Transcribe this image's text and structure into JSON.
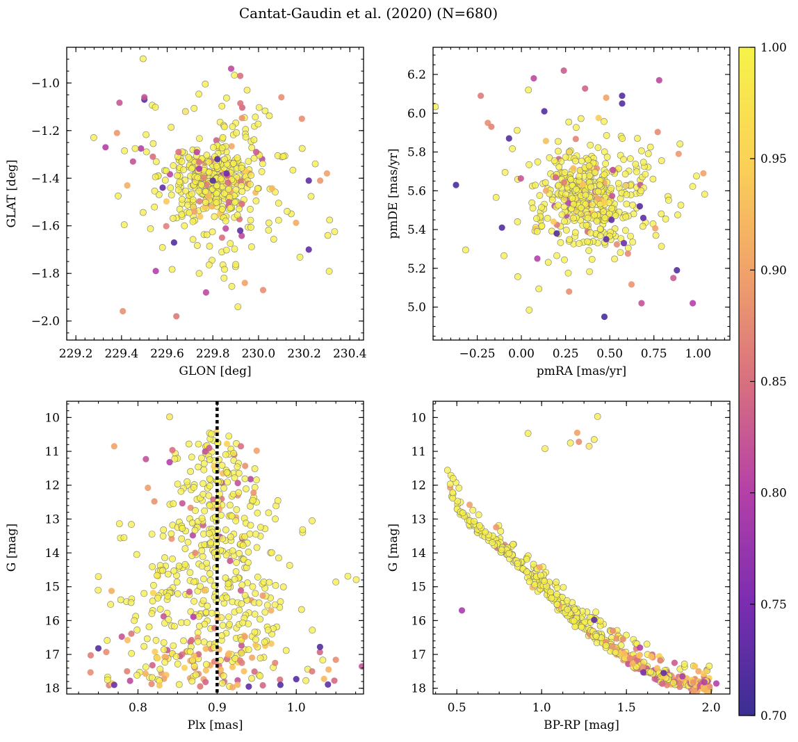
{
  "chart_data": {
    "title": "Cantat-Gaudin et al. (2020) (N=680)",
    "n_members": 680,
    "colorbar": {
      "label": "",
      "range": [
        0.7,
        1.0
      ],
      "ticks": [
        "0.70",
        "0.75",
        "0.80",
        "0.85",
        "0.90",
        "0.95",
        "1.00"
      ],
      "colormap": "plasma",
      "stops": [
        "#3b2f93",
        "#7a2db0",
        "#b440a8",
        "#d8707f",
        "#f1a36a",
        "#fbd356",
        "#f6f34a"
      ]
    },
    "panels": [
      {
        "id": "sky",
        "type": "scatter",
        "xlabel": "GLON [deg]",
        "ylabel": "GLAT [deg]",
        "xlim": [
          229.16,
          230.46
        ],
        "ylim": [
          -2.08,
          -0.85
        ],
        "y_inverted": false,
        "xticks": [
          "229.2",
          "229.4",
          "229.6",
          "229.8",
          "230.0",
          "230.2",
          "230.4"
        ],
        "yticks": [
          "−1.0",
          "−1.2",
          "−1.4",
          "−1.6",
          "−1.8",
          "−2.0"
        ],
        "points": [
          [
            229.88,
            -0.94,
            0.81
          ],
          [
            229.92,
            -0.97,
            0.85
          ],
          [
            229.68,
            -1.12,
            0.97
          ],
          [
            229.8,
            -1.41,
            0.72
          ],
          [
            229.74,
            -1.36,
            0.79
          ],
          [
            229.86,
            -1.38,
            0.74
          ],
          [
            229.92,
            -1.62,
            0.73
          ],
          [
            229.63,
            -1.67,
            0.72
          ],
          [
            230.22,
            -1.41,
            0.73
          ],
          [
            230.22,
            -1.7,
            0.73
          ],
          [
            229.5,
            -1.07,
            0.72
          ],
          [
            229.64,
            -1.98,
            0.86
          ],
          [
            229.77,
            -1.88,
            0.81
          ],
          [
            230.02,
            -1.87,
            0.88
          ],
          [
            230.1,
            -1.06,
            0.88
          ],
          [
            229.38,
            -1.21,
            0.89
          ],
          [
            230.27,
            -1.41,
            0.89
          ],
          [
            229.94,
            -1.84,
            0.9
          ],
          [
            229.5,
            -1.06,
            0.82
          ],
          [
            229.33,
            -1.27,
            0.8
          ],
          [
            230.19,
            -1.15,
            0.88
          ],
          [
            229.55,
            -1.79,
            0.8
          ],
          [
            229.95,
            -1.03,
            0.99
          ],
          [
            229.74,
            -1.8,
            0.99
          ],
          [
            229.91,
            -1.94,
            0.99
          ],
          [
            229.65,
            -1.29,
            0.85
          ],
          [
            229.99,
            -1.29,
            0.83
          ],
          [
            229.72,
            -1.54,
            0.9
          ],
          [
            229.87,
            -1.5,
            0.84
          ],
          [
            229.58,
            -1.44,
            0.73
          ],
          [
            229.82,
            -1.32,
            0.72
          ],
          [
            229.45,
            -1.33,
            0.82
          ],
          [
            230.3,
            -1.38,
            0.9
          ],
          [
            229.84,
            -1.65,
            0.85
          ]
        ]
      },
      {
        "id": "pm",
        "type": "scatter",
        "xlabel": "pmRA [mas/yr]",
        "ylabel": "pmDE [mas/yr]",
        "xlim": [
          -0.5,
          1.18
        ],
        "ylim": [
          4.83,
          6.34
        ],
        "y_inverted": false,
        "xticks": [
          "−0.25",
          "0.00",
          "0.25",
          "0.50",
          "0.75",
          "1.00"
        ],
        "yticks": [
          "5.0",
          "5.2",
          "5.4",
          "5.6",
          "5.8",
          "6.0",
          "6.2"
        ],
        "points": [
          [
            -0.37,
            5.63,
            0.71
          ],
          [
            -0.11,
            5.41,
            0.72
          ],
          [
            -0.07,
            5.87,
            0.72
          ],
          [
            0.13,
            6.01,
            0.72
          ],
          [
            0.2,
            5.38,
            0.72
          ],
          [
            0.47,
            4.95,
            0.71
          ],
          [
            0.57,
            6.09,
            0.72
          ],
          [
            0.57,
            6.05,
            0.72
          ],
          [
            0.88,
            5.19,
            0.72
          ],
          [
            0.48,
            5.35,
            0.73
          ],
          [
            0.51,
            5.45,
            0.73
          ],
          [
            0.58,
            5.33,
            0.74
          ],
          [
            0.67,
            5.52,
            0.72
          ],
          [
            0.69,
            5.46,
            0.73
          ],
          [
            0.07,
            6.18,
            0.81
          ],
          [
            0.24,
            6.22,
            0.83
          ],
          [
            0.78,
            6.17,
            0.81
          ],
          [
            0.09,
            5.25,
            0.8
          ],
          [
            0.68,
            5.02,
            0.82
          ],
          [
            0.86,
            5.15,
            0.83
          ],
          [
            -0.23,
            6.09,
            0.86
          ],
          [
            -0.19,
            5.95,
            0.88
          ],
          [
            -0.17,
            5.93,
            0.87
          ],
          [
            0.48,
            6.08,
            0.9
          ],
          [
            0.27,
            5.08,
            0.88
          ],
          [
            0.89,
            5.79,
            0.89
          ],
          [
            1.03,
            5.69,
            0.9
          ],
          [
            0.97,
            5.02,
            0.8
          ]
        ]
      },
      {
        "id": "plx",
        "type": "scatter",
        "xlabel": "Plx [mas]",
        "ylabel": "G [mag]",
        "xlim": [
          0.71,
          1.085
        ],
        "ylim": [
          18.17,
          9.52
        ],
        "y_inverted": true,
        "vline": 0.9,
        "xticks": [
          "0.8",
          "0.9",
          "1.0"
        ],
        "yticks": [
          "10",
          "11",
          "12",
          "13",
          "14",
          "15",
          "16",
          "17",
          "18"
        ],
        "points": [
          [
            0.84,
            9.98,
            0.98
          ],
          [
            0.77,
            10.85,
            0.9
          ],
          [
            0.81,
            11.23,
            0.82
          ],
          [
            0.84,
            11.32,
            0.8
          ],
          [
            0.89,
            10.9,
            0.83
          ],
          [
            0.93,
            10.85,
            0.85
          ],
          [
            0.95,
            10.98,
            0.9
          ],
          [
            0.75,
            14.7,
            0.99
          ],
          [
            1.05,
            14.86,
            0.99
          ],
          [
            1.02,
            13.05,
            0.99
          ],
          [
            0.75,
            16.82,
            0.72
          ],
          [
            0.77,
            17.9,
            0.74
          ],
          [
            0.94,
            17.95,
            0.73
          ],
          [
            0.98,
            17.9,
            0.72
          ],
          [
            1.0,
            17.73,
            0.72
          ],
          [
            1.03,
            16.78,
            0.72
          ],
          [
            1.04,
            17.89,
            0.73
          ],
          [
            0.74,
            17.53,
            0.88
          ],
          [
            0.76,
            16.93,
            0.88
          ],
          [
            0.79,
            17.78,
            0.81
          ],
          [
            1.02,
            17.5,
            0.86
          ],
          [
            1.05,
            17.16,
            0.88
          ],
          [
            0.87,
            15.89,
            0.8
          ],
          [
            0.93,
            15.11,
            0.83
          ]
        ]
      },
      {
        "id": "cmd",
        "type": "scatter",
        "xlabel": "BP-RP [mag]",
        "ylabel": "G [mag]",
        "xlim": [
          0.36,
          2.11
        ],
        "ylim": [
          18.17,
          9.52
        ],
        "y_inverted": true,
        "xticks": [
          "0.5",
          "1.0",
          "1.5",
          "2.0"
        ],
        "yticks": [
          "10",
          "11",
          "12",
          "13",
          "14",
          "15",
          "16",
          "17",
          "18"
        ],
        "isochrone_shape": [
          [
            0.44,
            11.35
          ],
          [
            0.47,
            12.2
          ],
          [
            0.52,
            12.8
          ],
          [
            0.6,
            13.2
          ],
          [
            0.7,
            13.55
          ],
          [
            0.8,
            14.0
          ],
          [
            0.9,
            14.5
          ],
          [
            1.0,
            15.0
          ],
          [
            1.1,
            15.5
          ],
          [
            1.2,
            16.0
          ],
          [
            1.3,
            16.35
          ],
          [
            1.4,
            16.75
          ],
          [
            1.5,
            17.1
          ],
          [
            1.6,
            17.4
          ],
          [
            1.7,
            17.65
          ],
          [
            1.8,
            17.8
          ],
          [
            1.95,
            17.92
          ]
        ],
        "giants": [
          [
            0.92,
            10.47,
            0.99
          ],
          [
            1.33,
            9.97,
            0.99
          ],
          [
            1.02,
            10.92,
            0.99
          ],
          [
            1.17,
            10.75,
            0.99
          ],
          [
            1.21,
            10.45,
            0.9
          ],
          [
            1.22,
            10.72,
            0.88
          ],
          [
            1.28,
            10.85,
            0.98
          ],
          [
            1.31,
            10.65,
            0.99
          ]
        ],
        "points": [
          [
            0.53,
            15.7,
            0.79
          ],
          [
            1.31,
            15.98,
            0.73
          ],
          [
            1.72,
            17.55,
            0.73
          ],
          [
            1.96,
            17.82,
            0.8
          ],
          [
            2.03,
            17.86,
            0.8
          ],
          [
            1.83,
            17.65,
            0.79
          ],
          [
            1.58,
            16.8,
            0.8
          ],
          [
            1.48,
            16.55,
            0.88
          ],
          [
            1.42,
            16.3,
            0.88
          ],
          [
            1.6,
            17.53,
            0.75
          ]
        ]
      }
    ]
  }
}
